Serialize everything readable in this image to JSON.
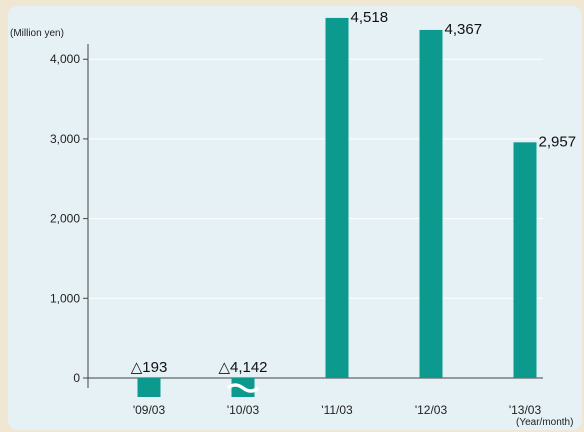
{
  "chart_data": {
    "type": "bar",
    "y_unit": "(Million yen)",
    "x_unit": "(Year/month)",
    "categories": [
      "'09/03",
      "'10/03",
      "'11/03",
      "'12/03",
      "'13/03"
    ],
    "values": [
      -193,
      -4142,
      4518,
      4367,
      2957
    ],
    "value_labels": [
      "△193",
      "△4,142",
      "4,518",
      "4,367",
      "2,957"
    ],
    "axis_break_on": [
      "'10/03"
    ],
    "yticks": [
      0,
      1000,
      2000,
      3000,
      4000
    ],
    "ytick_labels": [
      "0",
      "1,000",
      "2,000",
      "3,000",
      "4,000"
    ],
    "ylim": [
      -300,
      4700
    ],
    "grid": true,
    "bar_color": "#0b9a8d"
  }
}
